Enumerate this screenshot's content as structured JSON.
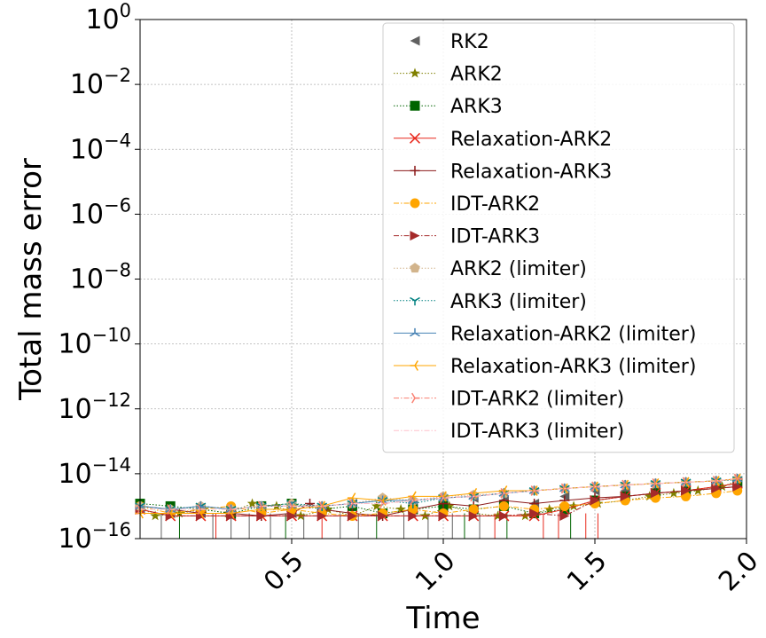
{
  "chart_data": {
    "type": "line",
    "title": "",
    "xlabel": "Time",
    "ylabel": "Total mass error",
    "xlim": [
      0.0,
      2.0
    ],
    "ylim_log10": [
      -16,
      0
    ],
    "yscale": "log",
    "grid": true,
    "legend_position": "upper-right",
    "x_ticks": [
      {
        "value": 0.5,
        "label": "0.5"
      },
      {
        "value": 1.0,
        "label": "1.0"
      },
      {
        "value": 1.5,
        "label": "1.5"
      },
      {
        "value": 2.0,
        "label": "2.0"
      }
    ],
    "y_ticks": [
      {
        "exp": 0,
        "base": "10",
        "sup": "0"
      },
      {
        "exp": -2,
        "base": "10",
        "sup": "−2"
      },
      {
        "exp": -4,
        "base": "10",
        "sup": "−4"
      },
      {
        "exp": -6,
        "base": "10",
        "sup": "−6"
      },
      {
        "exp": -8,
        "base": "10",
        "sup": "−8"
      },
      {
        "exp": -10,
        "base": "10",
        "sup": "−10"
      },
      {
        "exp": -12,
        "base": "10",
        "sup": "−12"
      },
      {
        "exp": -14,
        "base": "10",
        "sup": "−14"
      },
      {
        "exp": -16,
        "base": "10",
        "sup": "−16"
      }
    ],
    "series": [
      {
        "name": "RK2",
        "color": "#606060",
        "marker": "triangle-left",
        "line": "none",
        "x": [
          0.0,
          0.1,
          0.2,
          0.3,
          0.4,
          0.5,
          0.6,
          0.7,
          0.8,
          0.9,
          1.0,
          1.1,
          1.2,
          1.3,
          1.4,
          1.5,
          1.6,
          1.7,
          1.8,
          1.9,
          1.97
        ],
        "y": [
          8e-16,
          6e-16,
          6e-16,
          5e-16,
          8e-16,
          6e-16,
          8e-16,
          1.2e-15,
          6e-16,
          1.2e-15,
          1.5e-15,
          1.8e-15,
          1.5e-15,
          1.2e-15,
          2e-15,
          3e-15,
          3e-15,
          4e-15,
          4e-15,
          5e-15,
          6e-15
        ]
      },
      {
        "name": "ARK2",
        "color": "#808000",
        "marker": "star",
        "line": "dotted",
        "x": [
          0.0,
          0.05,
          0.13,
          0.21,
          0.29,
          0.37,
          0.45,
          0.53,
          0.62,
          0.7,
          0.78,
          0.86,
          0.94,
          1.02,
          1.1,
          1.18,
          1.27,
          1.35,
          1.43,
          1.51,
          1.6,
          1.68,
          1.76,
          1.84,
          1.92,
          1.97
        ],
        "y": [
          1e-15,
          5e-16,
          6e-16,
          8e-16,
          6e-16,
          1.2e-15,
          1e-15,
          5e-16,
          8e-16,
          5e-16,
          1e-15,
          8e-16,
          5e-16,
          1e-15,
          6e-16,
          5e-16,
          5e-16,
          8e-16,
          1e-15,
          1.2e-15,
          1.5e-15,
          2e-15,
          2.5e-15,
          3e-15,
          4e-15,
          6e-15
        ]
      },
      {
        "name": "ARK3",
        "color": "#006400",
        "marker": "square",
        "line": "dotted",
        "x": [
          0.0,
          0.1,
          0.2,
          0.3,
          0.4,
          0.5,
          0.6,
          0.7,
          0.8,
          0.9,
          1.0,
          1.1,
          1.2,
          1.3,
          1.4,
          1.5,
          1.6,
          1.7,
          1.8,
          1.9,
          1.97
        ],
        "y": [
          1.2e-15,
          1e-15,
          8e-16,
          6e-16,
          1e-15,
          1.2e-15,
          8e-16,
          1e-15,
          6e-16,
          8e-16,
          1e-15,
          8e-16,
          1e-15,
          6e-16,
          8e-16,
          1.5e-15,
          2e-15,
          2.5e-15,
          3e-15,
          4e-15,
          5e-15
        ]
      },
      {
        "name": "Relaxation-ARK2",
        "color": "#e8281c",
        "marker": "x",
        "line": "solid",
        "x": [
          0.0,
          0.1,
          0.2,
          0.3,
          0.4,
          0.5,
          0.6,
          0.7,
          0.8,
          0.9,
          1.0,
          1.1,
          1.2,
          1.3,
          1.4,
          1.5,
          1.6,
          1.7,
          1.8,
          1.9,
          1.97
        ],
        "y": [
          8e-16,
          5e-16,
          5e-16,
          5e-16,
          5e-16,
          5e-16,
          5e-16,
          5e-16,
          5e-16,
          5e-16,
          5e-16,
          5e-16,
          5e-16,
          5e-16,
          8e-16,
          1.5e-15,
          2e-15,
          2.5e-15,
          3e-15,
          4e-15,
          5e-15
        ]
      },
      {
        "name": "Relaxation-ARK3",
        "color": "#8b1a1a",
        "marker": "plus",
        "line": "solid",
        "x": [
          0.0,
          0.1,
          0.2,
          0.3,
          0.4,
          0.5,
          0.56,
          0.6,
          0.7,
          0.8,
          0.9,
          1.0,
          1.1,
          1.2,
          1.3,
          1.4,
          1.5,
          1.6,
          1.7,
          1.8,
          1.9,
          1.97
        ],
        "y": [
          1e-15,
          8e-16,
          6e-16,
          6e-16,
          5e-16,
          6e-16,
          1.2e-15,
          8e-16,
          6e-16,
          5e-16,
          8e-16,
          1.2e-15,
          1e-15,
          1.5e-15,
          1.2e-15,
          1.5e-15,
          1.8e-15,
          2e-15,
          2.5e-15,
          3e-15,
          3.5e-15,
          4e-15
        ]
      },
      {
        "name": "IDT-ARK2",
        "color": "#ffa500",
        "marker": "circle",
        "line": "dashdot",
        "x": [
          0.0,
          0.1,
          0.2,
          0.3,
          0.4,
          0.5,
          0.6,
          0.7,
          0.8,
          0.9,
          1.0,
          1.1,
          1.2,
          1.3,
          1.4,
          1.5,
          1.6,
          1.7,
          1.8,
          1.9,
          1.97
        ],
        "y": [
          1e-15,
          6e-16,
          8e-16,
          1e-15,
          6e-16,
          8e-16,
          6e-16,
          5e-16,
          6e-16,
          8e-16,
          6e-16,
          8e-16,
          1e-15,
          8e-16,
          1e-15,
          1.2e-15,
          1.5e-15,
          1.8e-15,
          2e-15,
          2.5e-15,
          3e-15
        ]
      },
      {
        "name": "IDT-ARK3",
        "color": "#a52a2a",
        "marker": "triangle-right",
        "line": "dashdot",
        "x": [
          0.0,
          0.1,
          0.2,
          0.3,
          0.4,
          0.5,
          0.6,
          0.7,
          0.8,
          0.9,
          1.0,
          1.1,
          1.2,
          1.3,
          1.4,
          1.5,
          1.6,
          1.7,
          1.8,
          1.9,
          1.97
        ],
        "y": [
          8e-16,
          5e-16,
          5e-16,
          5e-16,
          5e-16,
          5e-16,
          5e-16,
          5e-16,
          5e-16,
          5e-16,
          5e-16,
          5e-16,
          5e-16,
          6e-16,
          5e-16,
          1.5e-15,
          2e-15,
          2.5e-15,
          3e-15,
          3.5e-15,
          4e-15
        ]
      },
      {
        "name": "ARK2 (limiter)",
        "color": "#d2b48c",
        "marker": "pentagon",
        "line": "dotted",
        "x": [
          0.0,
          0.1,
          0.2,
          0.3,
          0.4,
          0.5,
          0.6,
          0.7,
          0.8,
          0.9,
          1.0,
          1.1,
          1.2,
          1.3,
          1.4,
          1.5,
          1.6,
          1.7,
          1.8,
          1.9,
          1.97
        ],
        "y": [
          1e-15,
          8e-16,
          1e-15,
          8e-16,
          1e-15,
          1.2e-15,
          1e-15,
          1.2e-15,
          1.8e-15,
          1.5e-15,
          2e-15,
          2.2e-15,
          2.5e-15,
          3e-15,
          3.5e-15,
          4e-15,
          4.5e-15,
          5e-15,
          5.5e-15,
          6e-15,
          7e-15
        ]
      },
      {
        "name": "ARK3 (limiter)",
        "color": "#008080",
        "marker": "tri-down",
        "line": "dotted",
        "x": [
          0.0,
          0.1,
          0.2,
          0.3,
          0.4,
          0.5,
          0.6,
          0.7,
          0.8,
          0.9,
          1.0,
          1.1,
          1.2,
          1.3,
          1.4,
          1.5,
          1.6,
          1.7,
          1.8,
          1.9,
          1.97
        ],
        "y": [
          1e-15,
          8e-16,
          1e-15,
          8e-16,
          1e-15,
          1.2e-15,
          1e-15,
          1.2e-15,
          1.5e-15,
          1.2e-15,
          1.8e-15,
          2e-15,
          2.5e-15,
          3e-15,
          3.5e-15,
          4e-15,
          4.5e-15,
          5e-15,
          5.5e-15,
          6e-15,
          6.5e-15
        ]
      },
      {
        "name": "Relaxation-ARK2 (limiter)",
        "color": "#4682b4",
        "marker": "tri-up",
        "line": "solid",
        "x": [
          0.0,
          0.1,
          0.2,
          0.3,
          0.4,
          0.5,
          0.6,
          0.7,
          0.8,
          0.9,
          1.0,
          1.1,
          1.2,
          1.3,
          1.4,
          1.5,
          1.6,
          1.7,
          1.8,
          1.9,
          1.97
        ],
        "y": [
          1e-15,
          8e-16,
          1e-15,
          8e-16,
          1e-15,
          1e-15,
          1e-15,
          1.2e-15,
          1.5e-15,
          1.5e-15,
          1.8e-15,
          2e-15,
          2.5e-15,
          3e-15,
          3.5e-15,
          4e-15,
          4.5e-15,
          5e-15,
          5.5e-15,
          6e-15,
          7e-15
        ]
      },
      {
        "name": "Relaxation-ARK3 (limiter)",
        "color": "#ffa500",
        "marker": "tri-left",
        "line": "solid",
        "x": [
          0.0,
          0.1,
          0.2,
          0.3,
          0.4,
          0.5,
          0.6,
          0.7,
          0.8,
          0.9,
          1.0,
          1.1,
          1.2,
          1.3,
          1.4,
          1.5,
          1.6,
          1.7,
          1.8,
          1.9,
          1.97
        ],
        "y": [
          6e-16,
          6e-16,
          6e-16,
          6e-16,
          8e-16,
          8e-16,
          1e-15,
          1.8e-15,
          1.5e-15,
          2e-15,
          2e-15,
          2.5e-15,
          3e-15,
          3e-15,
          3.5e-15,
          4e-15,
          4.5e-15,
          5e-15,
          5.5e-15,
          6e-15,
          7e-15
        ]
      },
      {
        "name": "IDT-ARK2 (limiter)",
        "color": "#fa8072",
        "marker": "tri-right",
        "line": "dashdot",
        "x": [
          0.0,
          0.1,
          0.2,
          0.3,
          0.4,
          0.5,
          0.6,
          0.7,
          0.8,
          0.9,
          1.0,
          1.1,
          1.2,
          1.3,
          1.4,
          1.5,
          1.6,
          1.7,
          1.8,
          1.9,
          1.97
        ],
        "y": [
          8e-16,
          8e-16,
          8e-16,
          8e-16,
          1e-15,
          1e-15,
          1e-15,
          1.2e-15,
          1.2e-15,
          1.5e-15,
          1.8e-15,
          2e-15,
          2.5e-15,
          3e-15,
          3.5e-15,
          4e-15,
          4.5e-15,
          5e-15,
          5.5e-15,
          6e-15,
          7e-15
        ]
      },
      {
        "name": "IDT-ARK3 (limiter)",
        "color": "#ffc0cb",
        "marker": "none",
        "line": "dashdot",
        "x": [
          0.0,
          0.1,
          0.2,
          0.3,
          0.4,
          0.5,
          0.6,
          0.7,
          0.8,
          0.9,
          1.0,
          1.1,
          1.2,
          1.3,
          1.4,
          1.5,
          1.6,
          1.7,
          1.8,
          1.9,
          1.97
        ],
        "y": [
          8e-16,
          8e-16,
          8e-16,
          8e-16,
          1e-15,
          1e-15,
          1e-15,
          1.2e-15,
          1.2e-15,
          1.5e-15,
          1.8e-15,
          2e-15,
          2.5e-15,
          3e-15,
          3.5e-15,
          4e-15,
          4.5e-15,
          5e-15,
          5.5e-15,
          6e-15,
          7e-15
        ]
      }
    ],
    "drops_to_zero": {
      "RK2": [
        0.07,
        0.24,
        0.3,
        0.36,
        0.43,
        0.54,
        0.66,
        0.72,
        0.87,
        0.95,
        1.03,
        1.12
      ],
      "Relaxation-ARK2": [
        0.25,
        0.6,
        1.17,
        1.33,
        1.38,
        1.47,
        1.51
      ],
      "ARK3": [
        0.13,
        0.48,
        0.78,
        1.07,
        1.21,
        1.42
      ]
    }
  }
}
